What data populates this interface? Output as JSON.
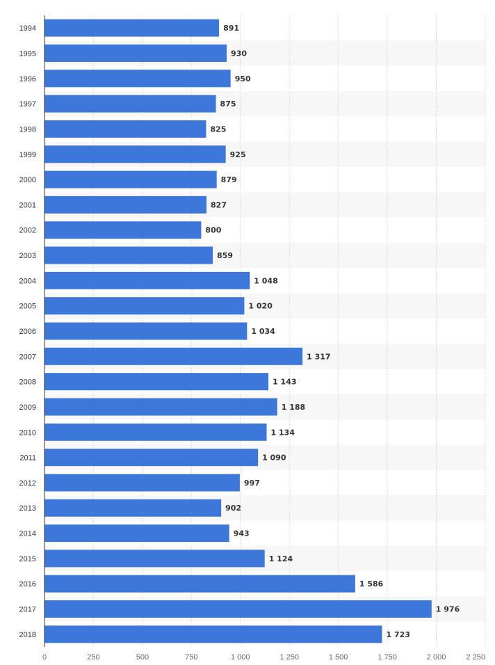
{
  "chart_data": {
    "type": "bar",
    "orientation": "horizontal",
    "title": "",
    "xlabel": "",
    "ylabel": "",
    "categories": [
      "1994",
      "1995",
      "1996",
      "1997",
      "1998",
      "1999",
      "2000",
      "2001",
      "2002",
      "2003",
      "2004",
      "2005",
      "2006",
      "2007",
      "2008",
      "2009",
      "2010",
      "2011",
      "2012",
      "2013",
      "2014",
      "2015",
      "2016",
      "2017",
      "2018"
    ],
    "values": [
      891,
      930,
      950,
      875,
      825,
      925,
      879,
      827,
      800,
      859,
      1048,
      1020,
      1034,
      1317,
      1143,
      1188,
      1134,
      1090,
      997,
      902,
      943,
      1124,
      1586,
      1976,
      1723
    ],
    "value_labels": [
      "891",
      "930",
      "950",
      "875",
      "825",
      "925",
      "879",
      "827",
      "800",
      "859",
      "1 048",
      "1 020",
      "1 034",
      "1 317",
      "1 143",
      "1 188",
      "1 134",
      "1 090",
      "997",
      "902",
      "943",
      "1 124",
      "1 586",
      "1 976",
      "1 723"
    ],
    "x_ticks": [
      0,
      250,
      500,
      750,
      1000,
      1250,
      1500,
      1750,
      2000,
      2250
    ],
    "x_tick_labels": [
      "0",
      "250",
      "500",
      "750",
      "1 000",
      "1 250",
      "1 500",
      "1 750",
      "2 000",
      "2 250"
    ],
    "xlim": [
      0,
      2250
    ],
    "grid": true,
    "legend": "none",
    "colors": {
      "bar": "#3d77d9",
      "grid": "#c8c8c8",
      "stripe": "#f7f7f7",
      "axis": "#333333"
    }
  }
}
